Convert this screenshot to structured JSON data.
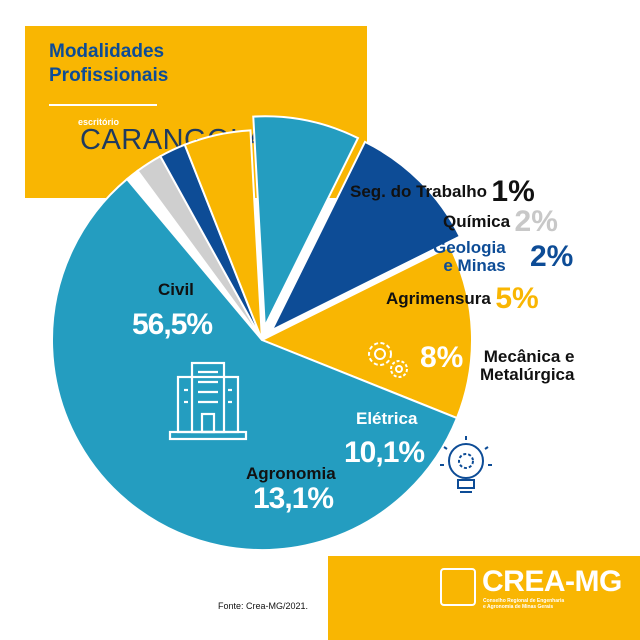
{
  "header": {
    "title_line1": "Modalidades",
    "title_line2": "Profissionais",
    "office_label": "escritório",
    "office_name": "CARANGOLA"
  },
  "chart_data": {
    "type": "pie",
    "title": "Modalidades Profissionais",
    "unit": "%",
    "slices": [
      {
        "name": "Seg. do Trabalho",
        "label": "1%",
        "value": 1,
        "color": "#ffffff"
      },
      {
        "name": "Química",
        "label": "2%",
        "value": 2,
        "color": "#cfcfcf"
      },
      {
        "name": "Geologia e Minas",
        "label": "2%",
        "value": 2,
        "color": "#0d4c96"
      },
      {
        "name": "Agrimensura",
        "label": "5%",
        "value": 5,
        "color": "#f9b602"
      },
      {
        "name": "Mecânica e Metalúrgica",
        "label": "8%",
        "value": 8,
        "color": "#249dc0"
      },
      {
        "name": "Elétrica",
        "label": "10,1%",
        "value": 10.1,
        "color": "#0d4c96"
      },
      {
        "name": "Agronomia",
        "label": "13,1%",
        "value": 13.1,
        "color": "#f9b602"
      },
      {
        "name": "Civil",
        "label": "56,5%",
        "value": 56.5,
        "color": "#249dc0"
      }
    ]
  },
  "labels": {
    "seg_name": "Seg. do Trabalho",
    "seg_val": "1%",
    "quim_name": "Química",
    "quim_val": "2%",
    "geo_name1": "Geologia",
    "geo_name2": "e Minas",
    "geo_val": "2%",
    "agrim_name": "Agrimensura",
    "agrim_val": "5%",
    "mec_name1": "Mecânica e",
    "mec_name2": "Metalúrgica",
    "mec_val": "8%",
    "elet_name": "Elétrica",
    "elet_val": "10,1%",
    "agro_name": "Agronomia",
    "agro_val": "13,1%",
    "civil_name": "Civil",
    "civil_val": "56,5%"
  },
  "icons": [
    "building-icon",
    "gears-icon",
    "lightbulb-gear-icon",
    "crea-seal-icon"
  ],
  "footer": {
    "source": "Fonte: Crea-MG/2021.",
    "logo_text": "CREA-MG",
    "logo_sub1": "Conselho Regional de Engenharia",
    "logo_sub2": "e Agronomia de Minas Gerais"
  }
}
